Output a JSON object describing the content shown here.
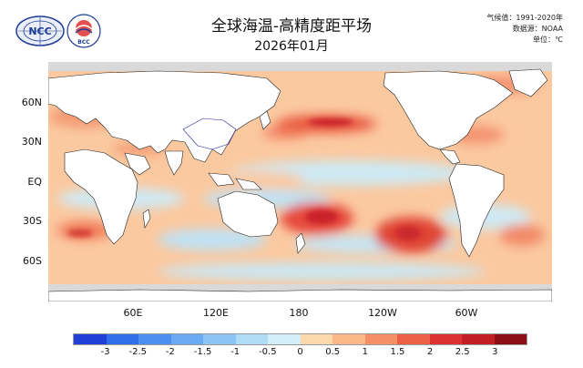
{
  "header": {
    "title": "全球海温-高精度距平场",
    "subtitle": "2026年01月",
    "climatology": "气候值：1991-2020年",
    "source": "数据源：NOAA",
    "unit": "单位：℃"
  },
  "logos": {
    "left_text": "NCC",
    "right_text": "BCC"
  },
  "map": {
    "lat_labels": [
      "60N",
      "30N",
      "EQ",
      "30S",
      "60S"
    ],
    "lon_labels": [
      "60E",
      "120E",
      "180",
      "120W",
      "60W"
    ]
  },
  "colorbar": {
    "colors": [
      "#1f3fd6",
      "#2f6ee6",
      "#4c8ff0",
      "#6aaaf3",
      "#8cc4f5",
      "#b0dcf6",
      "#d3eef7",
      "#fcd9ad",
      "#fbb98a",
      "#f58f66",
      "#ec6048",
      "#dc3232",
      "#c21f24",
      "#8c0f16"
    ],
    "labels": [
      "-3",
      "-2.5",
      "-2",
      "-1.5",
      "-1",
      "-0.5",
      "0",
      "0.5",
      "1",
      "1.5",
      "2",
      "2.5",
      "3"
    ]
  }
}
